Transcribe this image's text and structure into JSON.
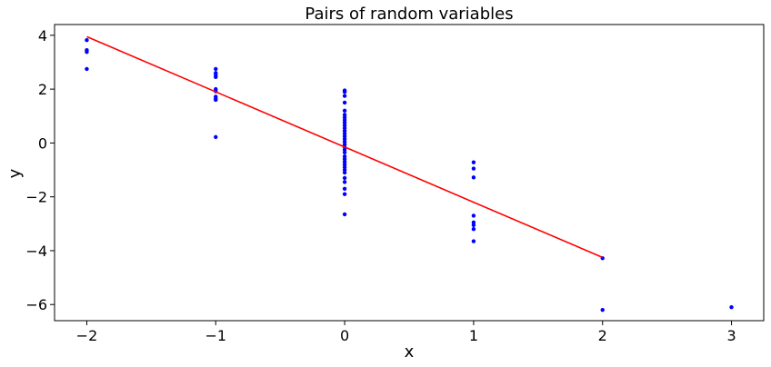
{
  "chart_data": {
    "type": "scatter",
    "title": "Pairs of random variables",
    "xlabel": "x",
    "ylabel": "y",
    "xlim": [
      -2.25,
      3.25
    ],
    "ylim": [
      -6.6,
      4.4
    ],
    "xticks": [
      -2,
      -1,
      0,
      1,
      2,
      3
    ],
    "xtick_labels": [
      "−2",
      "−1",
      "0",
      "1",
      "2",
      "3"
    ],
    "yticks": [
      -6,
      -4,
      -2,
      0,
      2,
      4
    ],
    "ytick_labels": [
      "−6",
      "−4",
      "−2",
      "0",
      "2",
      "4"
    ],
    "grid": false,
    "legend": "none",
    "series": [
      {
        "kind": "scatter",
        "color": "#0000ff",
        "points": [
          [
            -2,
            3.82
          ],
          [
            -2,
            3.45
          ],
          [
            -2,
            3.38
          ],
          [
            -2,
            2.75
          ],
          [
            -1,
            2.75
          ],
          [
            -1,
            2.6
          ],
          [
            -1,
            2.52
          ],
          [
            -1,
            2.45
          ],
          [
            -1,
            2.0
          ],
          [
            -1,
            1.92
          ],
          [
            -1,
            1.72
          ],
          [
            -1,
            1.65
          ],
          [
            -1,
            1.6
          ],
          [
            -1,
            0.22
          ],
          [
            0,
            1.95
          ],
          [
            0,
            1.9
          ],
          [
            0,
            1.75
          ],
          [
            0,
            1.5
          ],
          [
            0,
            1.2
          ],
          [
            0,
            1.05
          ],
          [
            0,
            0.95
          ],
          [
            0,
            0.85
          ],
          [
            0,
            0.75
          ],
          [
            0,
            0.65
          ],
          [
            0,
            0.55
          ],
          [
            0,
            0.45
          ],
          [
            0,
            0.35
          ],
          [
            0,
            0.25
          ],
          [
            0,
            0.15
          ],
          [
            0,
            0.05
          ],
          [
            0,
            -0.05
          ],
          [
            0,
            -0.15
          ],
          [
            0,
            -0.25
          ],
          [
            0,
            -0.35
          ],
          [
            0,
            -0.5
          ],
          [
            0,
            -0.6
          ],
          [
            0,
            -0.7
          ],
          [
            0,
            -0.8
          ],
          [
            0,
            -0.9
          ],
          [
            0,
            -1.0
          ],
          [
            0,
            -1.1
          ],
          [
            0,
            -1.3
          ],
          [
            0,
            -1.45
          ],
          [
            0,
            -1.7
          ],
          [
            0,
            -1.9
          ],
          [
            0,
            -2.65
          ],
          [
            1,
            -0.72
          ],
          [
            1,
            -0.95
          ],
          [
            1,
            -1.28
          ],
          [
            1,
            -2.7
          ],
          [
            1,
            -2.95
          ],
          [
            1,
            -3.05
          ],
          [
            1,
            -3.2
          ],
          [
            1,
            -3.65
          ],
          [
            2,
            -4.28
          ],
          [
            2,
            -6.2
          ],
          [
            3,
            -6.1
          ]
        ]
      },
      {
        "kind": "line",
        "color": "#ff0000",
        "points": [
          [
            -2,
            3.95
          ],
          [
            2,
            -4.25
          ]
        ]
      }
    ]
  }
}
